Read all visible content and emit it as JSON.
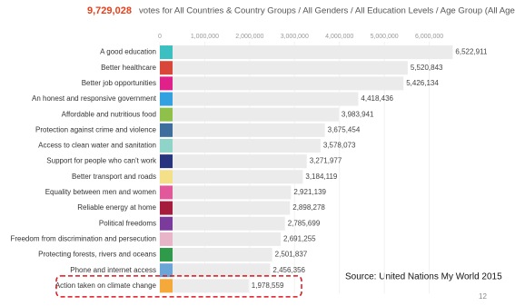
{
  "chart_data": {
    "type": "bar",
    "orientation": "horizontal",
    "title_highlight": "9,729,028",
    "title": "votes for All Countries & Country Groups / All Genders / All Education Levels / Age Group (All Age Groups)",
    "categories": [
      "A good education",
      "Better healthcare",
      "Better job opportunities",
      "An honest and responsive government",
      "Affordable and nutritious food",
      "Protection against crime and violence",
      "Access to clean water and sanitation",
      "Support for people who can't work",
      "Better transport and roads",
      "Equality between men and women",
      "Reliable energy at home",
      "Political freedoms",
      "Freedom from discrimination and persecution",
      "Protecting forests, rivers and oceans",
      "Phone and internet access",
      "Action taken on climate change"
    ],
    "values": [
      6522911,
      5520843,
      5426134,
      4418436,
      3983941,
      3675454,
      3578073,
      3271977,
      3184119,
      2921139,
      2898278,
      2785699,
      2691255,
      2501837,
      2456356,
      1978559
    ],
    "value_labels": [
      "6,522,911",
      "5,520,843",
      "5,426,134",
      "4,418,436",
      "3,983,941",
      "3,675,454",
      "3,578,073",
      "3,271,977",
      "3,184,119",
      "2,921,139",
      "2,898,278",
      "2,785,699",
      "2,691,255",
      "2,501,837",
      "2,456,356",
      "1,978,559"
    ],
    "colors": [
      "#3cbfc0",
      "#d9473a",
      "#e0218a",
      "#33a1e0",
      "#8fc04a",
      "#3d6e9e",
      "#8fd4c8",
      "#27357f",
      "#f5e08a",
      "#e1589b",
      "#a51c3c",
      "#7b3b9c",
      "#e8b4c8",
      "#2f9a4a",
      "#6aa5d8",
      "#f6a93b"
    ],
    "bar_color": "#ebebeb",
    "xlim": [
      0,
      7000000
    ],
    "xticks": [
      0,
      {
        "value": 1000000,
        "label": "1,000,000"
      },
      {
        "value": 2000000,
        "label": "2,000,000"
      },
      {
        "value": 3000000,
        "label": "3,000,000"
      },
      {
        "value": 4000000,
        "label": "4,000,000"
      },
      {
        "value": 5000000,
        "label": "5,000,000"
      },
      {
        "value": 6000000,
        "label": "6,000,000"
      }
    ],
    "highlight": 15,
    "source": "Source: United Nations My World 2015",
    "page_number": "12"
  }
}
